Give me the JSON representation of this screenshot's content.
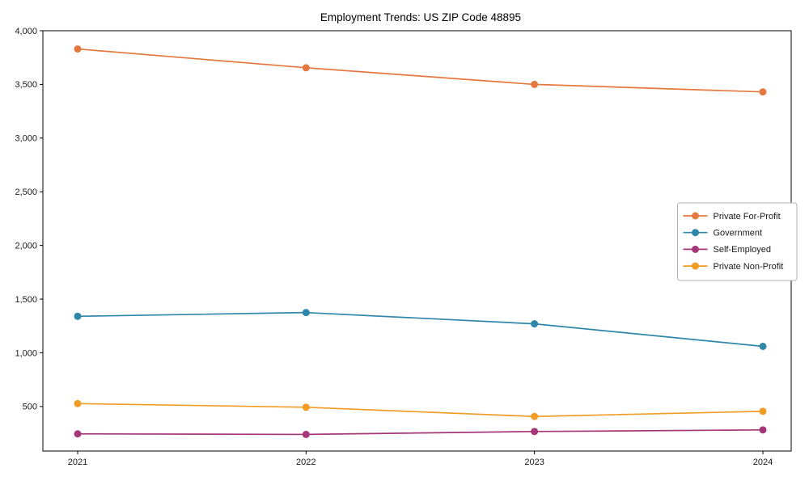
{
  "title": "Employment Trends: US ZIP Code 48895",
  "chart_data": {
    "type": "line",
    "x": [
      "2021",
      "2022",
      "2023",
      "2024"
    ],
    "series": [
      {
        "name": "Private For-Profit",
        "color": "#e4793f",
        "values": [
          3830,
          3655,
          3500,
          3430
        ]
      },
      {
        "name": "Government",
        "color": "#2e86a8",
        "values": [
          1340,
          1375,
          1270,
          1060
        ]
      },
      {
        "name": "Self-Employed",
        "color": "#a53778",
        "values": [
          245,
          240,
          267,
          282
        ]
      },
      {
        "name": "Private Non-Profit",
        "color": "#f09c25",
        "values": [
          527,
          493,
          407,
          455
        ]
      }
    ],
    "ytick_labels": [
      "500",
      "1,000",
      "1,500",
      "2,000",
      "2,500",
      "3,000",
      "3,500",
      "4,000"
    ],
    "ytick_values": [
      500,
      1000,
      1500,
      2000,
      2500,
      3000,
      3500,
      4000
    ],
    "ylim": [
      85,
      4000
    ],
    "xlabel": "",
    "ylabel": "",
    "grid": false,
    "legend_position": "center-right",
    "marker": "circle",
    "axis_color": "#000000",
    "text_color": "#1a1a1a",
    "legend_border_color": "#b3b3b3"
  }
}
